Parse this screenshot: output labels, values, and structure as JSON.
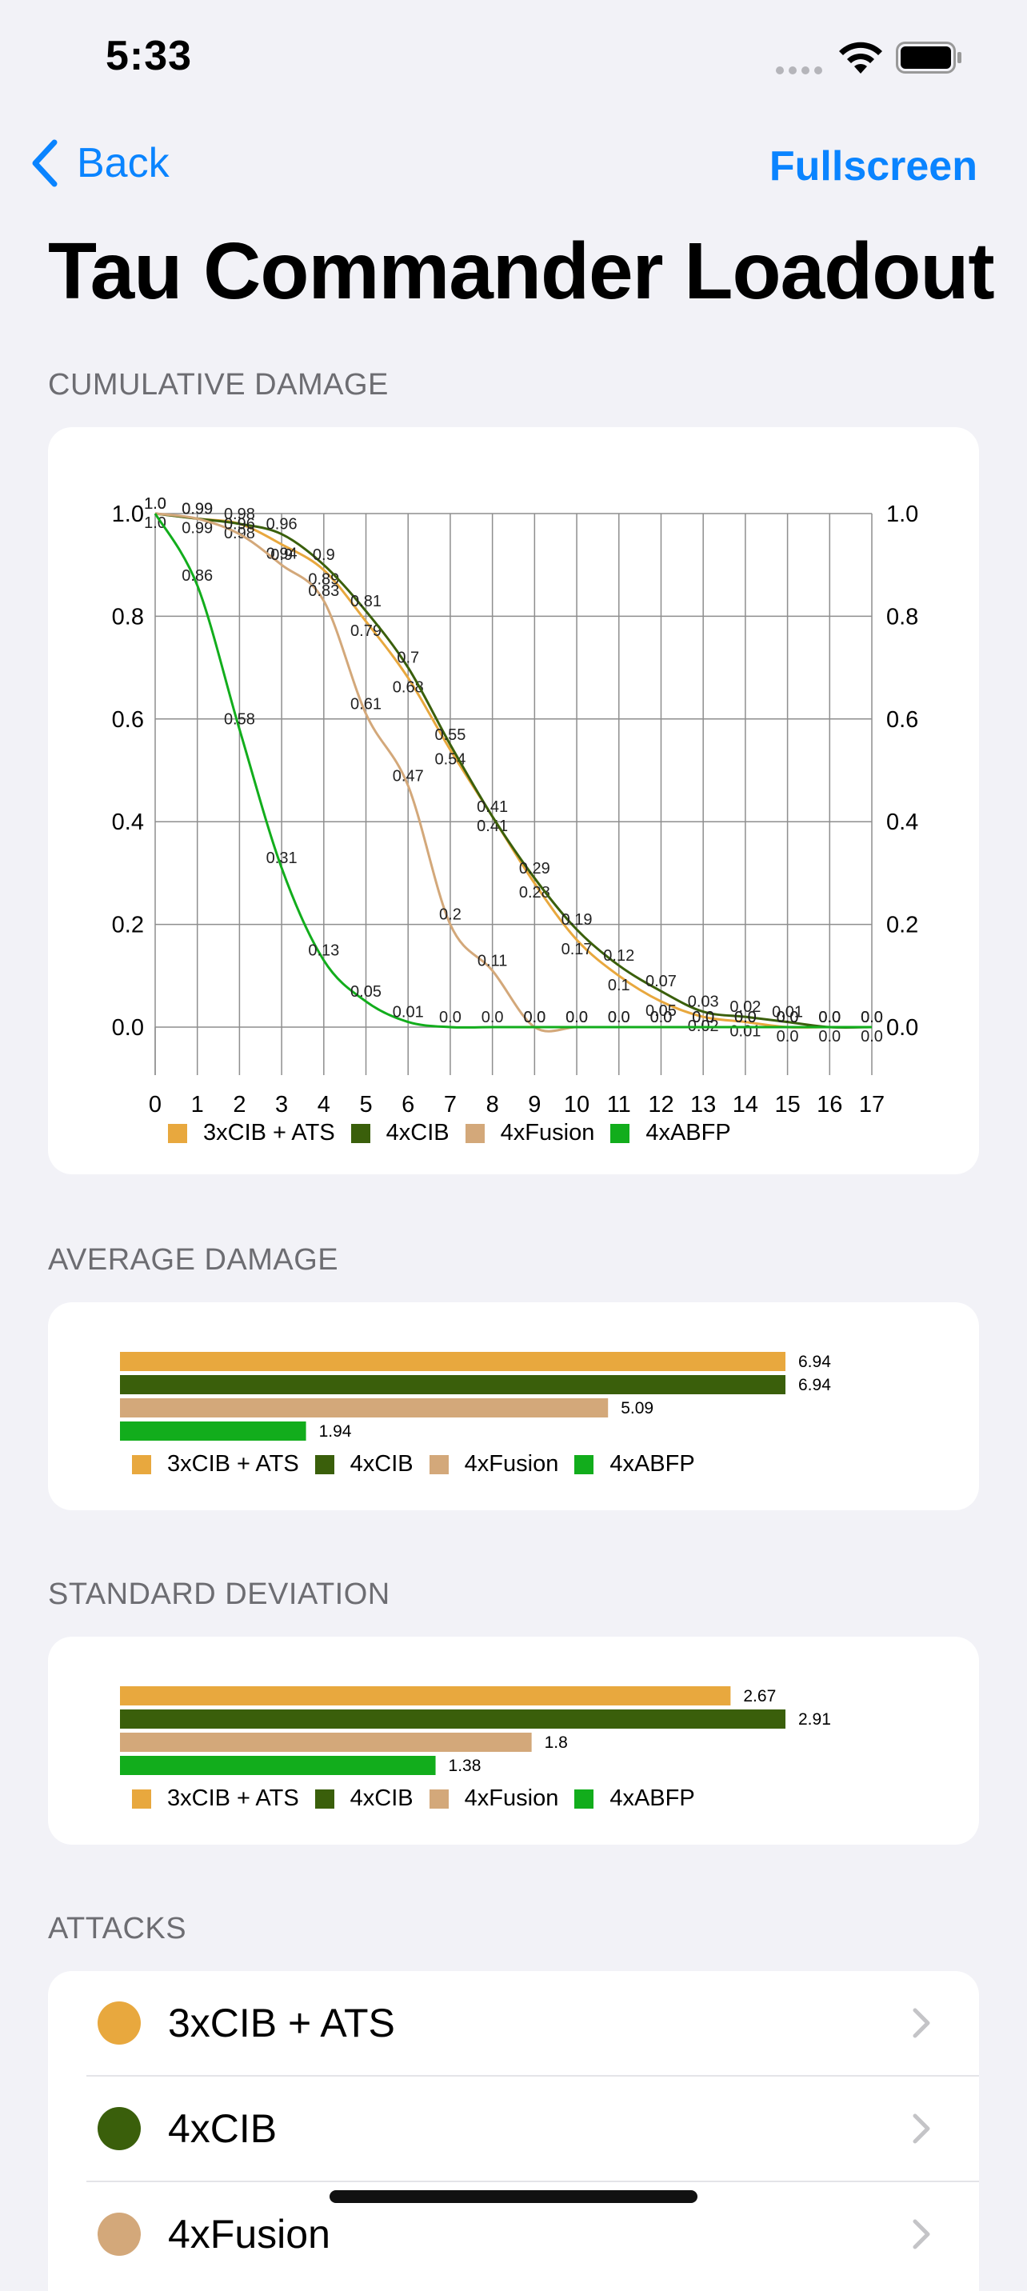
{
  "status": {
    "time": "5:33"
  },
  "nav": {
    "back_label": "Back",
    "fullscreen_label": "Fullscreen"
  },
  "title": "Tau Commander Loadout",
  "sections": {
    "cumulative": "CUMULATIVE DAMAGE",
    "average": "AVERAGE DAMAGE",
    "stddev": "STANDARD DEVIATION",
    "attacks": "ATTACKS"
  },
  "series_colors": [
    "#e8a83e",
    "#3a5f0b",
    "#d3a87a",
    "#12ad1c"
  ],
  "legend": [
    "3xCIB + ATS",
    "4xCIB",
    "4xFusion",
    "4xABFP"
  ],
  "chart_data": [
    {
      "type": "line",
      "x": [
        0,
        1,
        2,
        3,
        4,
        5,
        6,
        7,
        8,
        9,
        10,
        11,
        12,
        13,
        14,
        15,
        16,
        17
      ],
      "ylim": [
        0,
        1.0
      ],
      "xlim": [
        0,
        17
      ],
      "yticks": [
        "0.0",
        "0.2",
        "0.4",
        "0.6",
        "0.8",
        "1.0"
      ],
      "xticks": [
        "0",
        "1",
        "2",
        "3",
        "4",
        "5",
        "6",
        "7",
        "8",
        "9",
        "10",
        "11",
        "12",
        "13",
        "14",
        "15",
        "16",
        "17"
      ],
      "grid": true,
      "legend_position": "bottom",
      "series": [
        {
          "name": "3xCIB + ATS",
          "values": [
            1.0,
            0.99,
            0.98,
            0.94,
            0.89,
            0.79,
            0.68,
            0.54,
            0.41,
            0.28,
            0.17,
            0.1,
            0.05,
            0.02,
            0.01,
            0.0,
            0.0,
            0.0
          ]
        },
        {
          "name": "4xCIB",
          "values": [
            1.0,
            0.99,
            0.98,
            0.96,
            0.9,
            0.81,
            0.7,
            0.55,
            0.41,
            0.29,
            0.19,
            0.12,
            0.07,
            0.03,
            0.02,
            0.01,
            0.0,
            0.0
          ]
        },
        {
          "name": "4xFusion",
          "values": [
            1.0,
            0.99,
            0.96,
            0.9,
            0.83,
            0.61,
            0.47,
            0.2,
            0.11,
            0.0,
            0.0,
            0.0,
            0.0,
            0.0,
            0.0,
            0.0,
            0.0,
            0.0
          ]
        },
        {
          "name": "4xABFP",
          "values": [
            1.0,
            0.86,
            0.58,
            0.31,
            0.13,
            0.05,
            0.01,
            0.0,
            0.0,
            0.0,
            0.0,
            0.0,
            0.0,
            0.0,
            0.0,
            0.0,
            0.0,
            0.0
          ]
        }
      ]
    },
    {
      "type": "bar",
      "orientation": "horizontal",
      "categories": [
        "3xCIB + ATS",
        "4xCIB",
        "4xFusion",
        "4xABFP"
      ],
      "values": [
        6.94,
        6.94,
        5.09,
        1.94
      ],
      "xlim": [
        0,
        6.94
      ]
    },
    {
      "type": "bar",
      "orientation": "horizontal",
      "categories": [
        "3xCIB + ATS",
        "4xCIB",
        "4xFusion",
        "4xABFP"
      ],
      "values": [
        2.67,
        2.91,
        1.8,
        1.38
      ],
      "xlim": [
        0,
        2.91
      ]
    }
  ],
  "attacks": [
    {
      "name": "3xCIB + ATS",
      "color": "#e8a83e"
    },
    {
      "name": "4xCIB",
      "color": "#3a5f0b"
    },
    {
      "name": "4xFusion",
      "color": "#d3a87a"
    }
  ]
}
